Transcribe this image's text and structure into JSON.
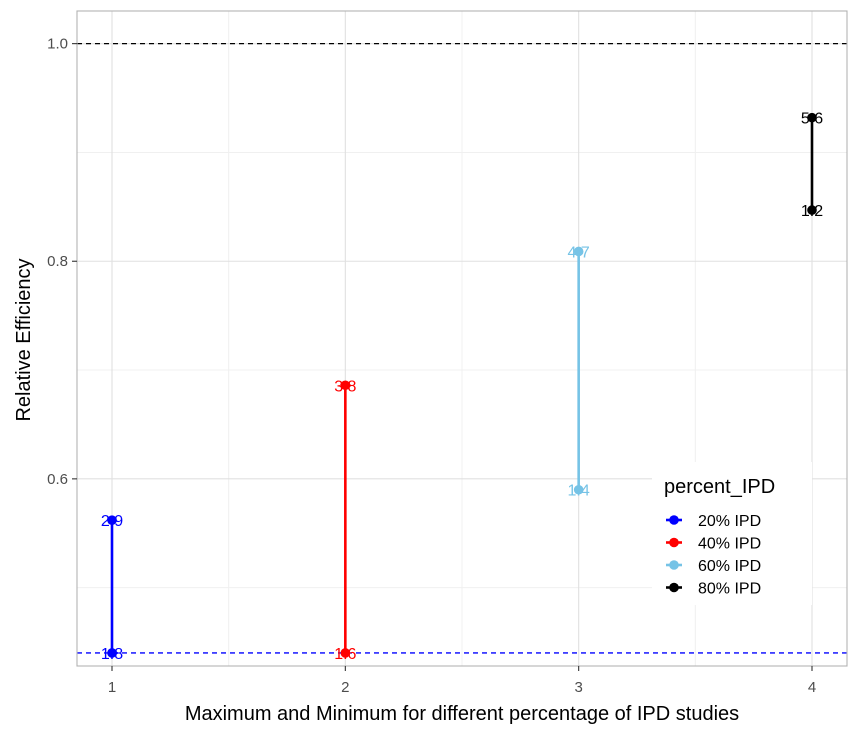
{
  "chart_data": {
    "type": "line",
    "xlabel": "Maximum and Minimum for different percentage of IPD studies",
    "ylabel": "Relative Efficiency",
    "x_ticks": [
      "1",
      "2",
      "3",
      "4"
    ],
    "y_ticks": [
      "0.6",
      "0.8",
      "1.0"
    ],
    "xlim": [
      0.85,
      4.15
    ],
    "ylim": [
      0.428,
      1.03
    ],
    "grid": true,
    "reference_lines": [
      {
        "y": 1.0,
        "color": "#000000",
        "style": "dashed"
      },
      {
        "y": 0.44,
        "color": "#0000ff",
        "style": "dashed"
      }
    ],
    "series": [
      {
        "name": "20% IPD",
        "color": "#0000ff",
        "x": 1,
        "points": [
          {
            "y": 0.44,
            "label": "1:8"
          },
          {
            "y": 0.562,
            "label": "2:9"
          }
        ]
      },
      {
        "name": "40% IPD",
        "color": "#ff0000",
        "x": 2,
        "points": [
          {
            "y": 0.44,
            "label": "1:6"
          },
          {
            "y": 0.686,
            "label": "3:8"
          }
        ]
      },
      {
        "name": "60% IPD",
        "color": "#76c3e6",
        "x": 3,
        "points": [
          {
            "y": 0.59,
            "label": "1:4"
          },
          {
            "y": 0.809,
            "label": "4:7"
          }
        ]
      },
      {
        "name": "80% IPD",
        "color": "#000000",
        "x": 4,
        "points": [
          {
            "y": 0.847,
            "label": "1:2"
          },
          {
            "y": 0.932,
            "label": "5:6"
          }
        ]
      }
    ],
    "legend": {
      "title": "percent_IPD",
      "placement": "bottom-right inside"
    }
  }
}
